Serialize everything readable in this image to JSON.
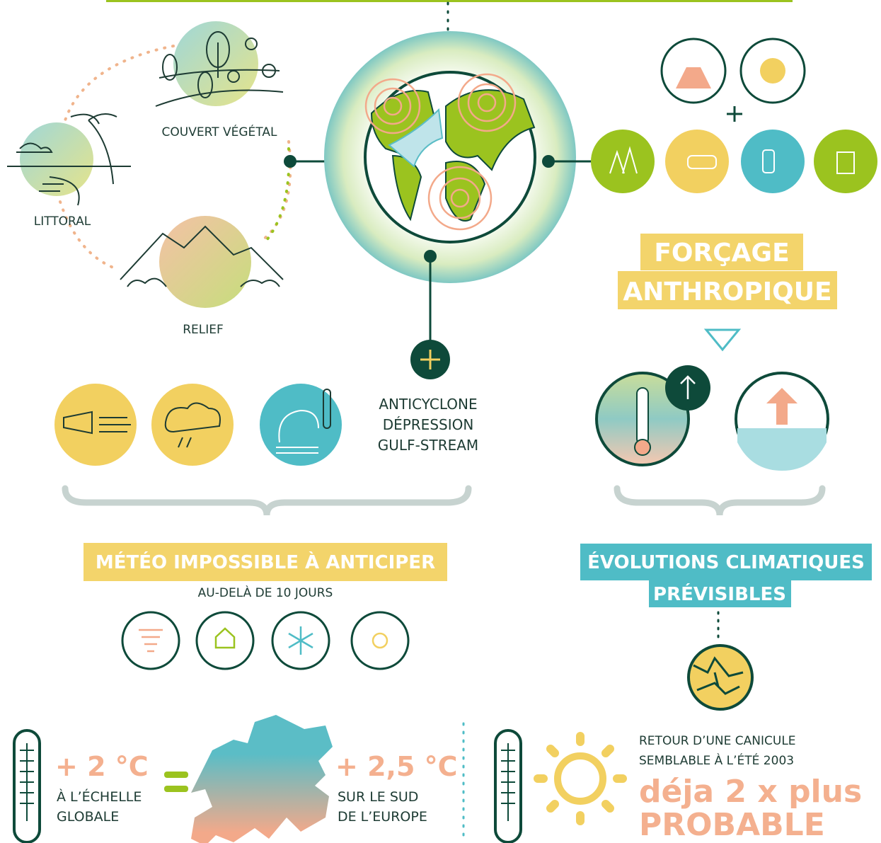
{
  "factors": {
    "vegetation": "COUVERT VÉGÉTAL",
    "coast": "LITTORAL",
    "relief": "RELIEF"
  },
  "forcing": {
    "line1": "FORÇAGE",
    "line2": "ANTHROPIQUE"
  },
  "weather_systems": [
    "ANTICYCLONE",
    "DÉPRESSION",
    "GULF-STREAM"
  ],
  "weather": {
    "title": "MÉTÉO IMPOSSIBLE À ANTICIPER",
    "subtitle": "AU-DELÀ DE 10 JOURS"
  },
  "climate": {
    "line1": "ÉVOLUTIONS CLIMATIQUES",
    "line2": "PRÉVISIBLES"
  },
  "global": {
    "value": "+ 2 °C",
    "line1": "À L’ÉCHELLE",
    "line2": "GLOBALE"
  },
  "europe": {
    "value": "+ 2,5 °C",
    "line1": "SUR LE SUD",
    "line2": "DE L’EUROPE"
  },
  "heatwave": {
    "line1": "RETOUR D’UNE CANICULE",
    "line2": "SEMBLABLE À L’ÉTÉ 2003",
    "big1": "déja 2 x plus",
    "big2": "PROBABLE"
  }
}
